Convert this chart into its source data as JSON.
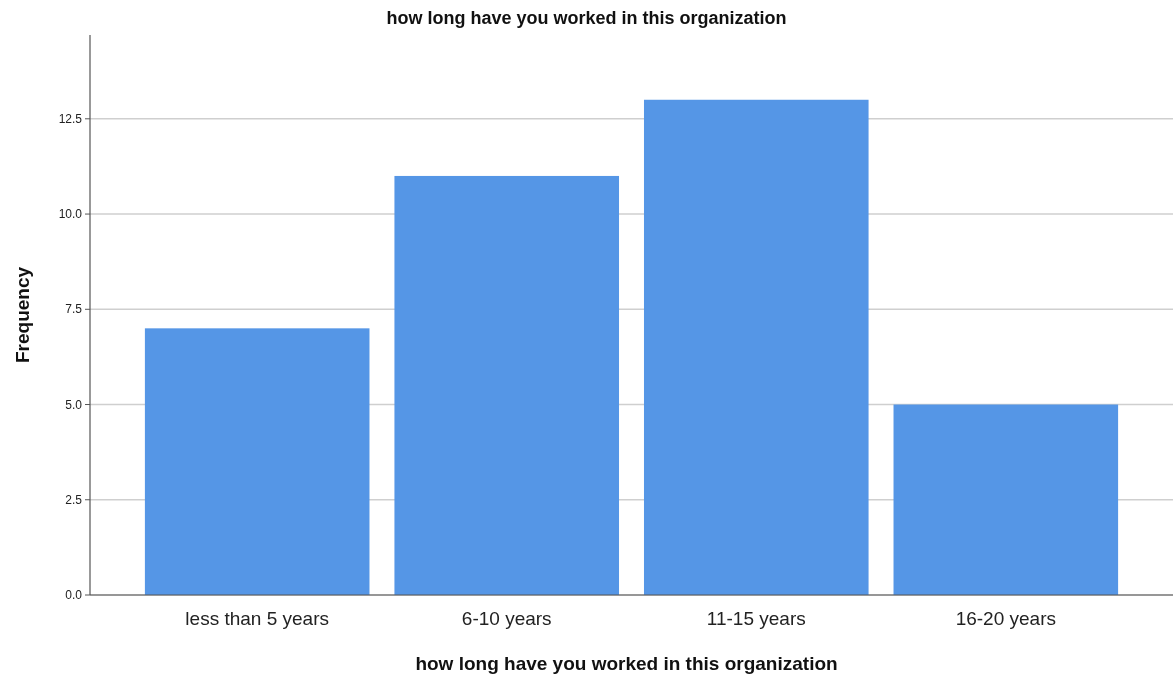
{
  "chart_data": {
    "type": "bar",
    "title": "how long have you worked in this organization",
    "xlabel": "how long have you worked in this organization",
    "ylabel": "Frequency",
    "categories": [
      "less than 5 years",
      "6-10 years",
      "11-15 years",
      "16-20 years"
    ],
    "values": [
      7,
      11,
      13,
      5
    ],
    "color": "#5596e6",
    "ylim": [
      0,
      14.7
    ],
    "yticks": [
      {
        "value": 0,
        "label": "0.0"
      },
      {
        "value": 2.5,
        "label": "2.5"
      },
      {
        "value": 5,
        "label": "5.0"
      },
      {
        "value": 7.5,
        "label": "7.5"
      },
      {
        "value": 10,
        "label": "10.0"
      },
      {
        "value": 12.5,
        "label": "12.5"
      }
    ],
    "grid": "y"
  }
}
